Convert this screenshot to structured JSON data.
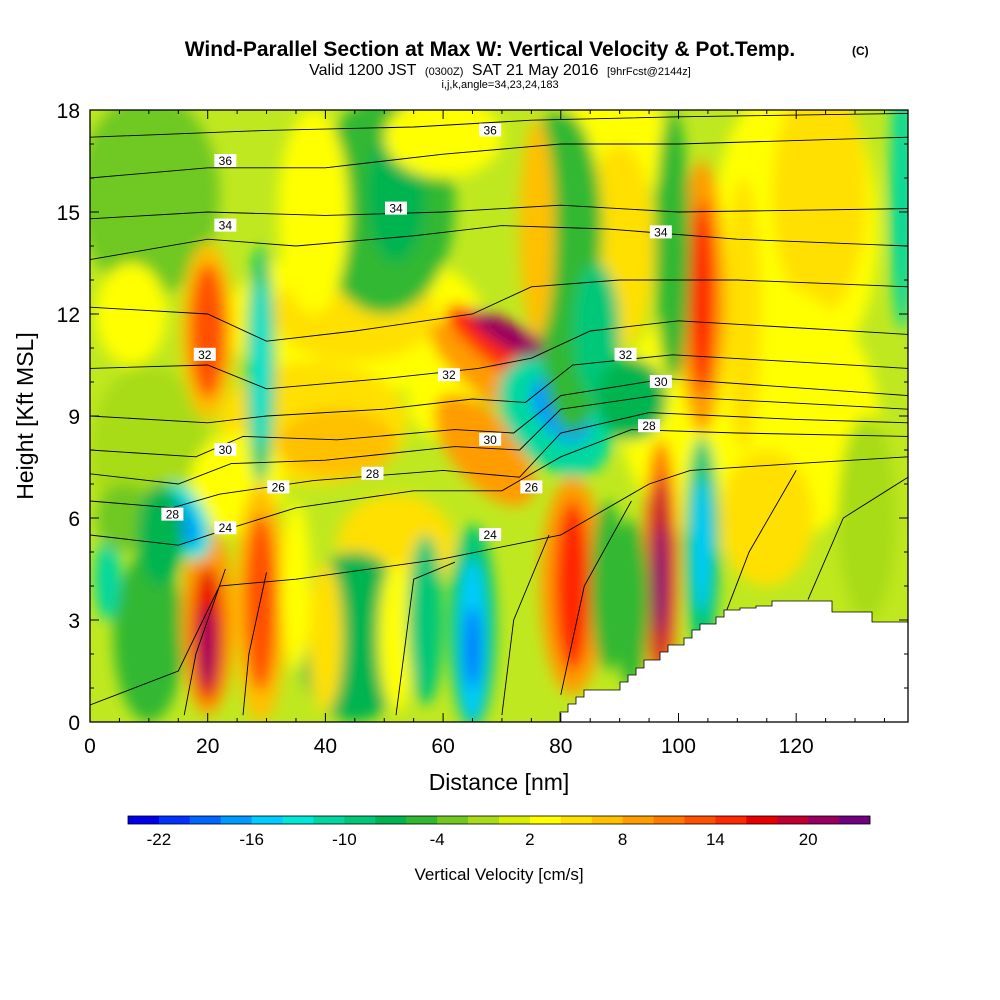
{
  "chart_data": {
    "type": "heatmap",
    "title": "Wind-Parallel Section at Max W: Vertical Velocity & Pot.Temp.",
    "title_mark": "(C)",
    "subtitle_parts": [
      "Valid 1200 JST",
      "(0300Z)",
      "SAT 21 May 2016",
      "[9hrFcst@2144z]"
    ],
    "subtitle_line2": "i,j,k,angle=34,23,24,183",
    "xlabel": "Distance [nm]",
    "ylabel": "Height [Kft MSL]",
    "xlim": [
      0,
      139
    ],
    "ylim": [
      0,
      18
    ],
    "x_ticks": [
      "0",
      "20",
      "40",
      "60",
      "80",
      "100",
      "120"
    ],
    "x_tick_values": [
      0,
      20,
      40,
      60,
      80,
      100,
      120
    ],
    "y_ticks": [
      "0",
      "3",
      "6",
      "9",
      "12",
      "15",
      "18"
    ],
    "y_tick_values": [
      0,
      3,
      6,
      9,
      12,
      15,
      18
    ],
    "grid": false,
    "colorbar": {
      "title": "Vertical Velocity [cm/s]",
      "labels": [
        "-22",
        "-16",
        "-10",
        "-4",
        "2",
        "8",
        "14",
        "20"
      ],
      "min": -24,
      "max": 24,
      "step": 2,
      "colors": [
        "#0000e8",
        "#0033ff",
        "#0066ff",
        "#0099ff",
        "#00ccff",
        "#00e8d8",
        "#00d8a0",
        "#00c878",
        "#00b450",
        "#30b830",
        "#70c820",
        "#a8dc18",
        "#d8f000",
        "#ffff00",
        "#ffe000",
        "#ffc000",
        "#ff9c00",
        "#ff7800",
        "#ff5000",
        "#ff2800",
        "#e80000",
        "#c00030",
        "#980060",
        "#700080"
      ]
    },
    "contour_labels": [
      {
        "text": "36",
        "x": 23,
        "y": 16.5
      },
      {
        "text": "36",
        "x": 68,
        "y": 17.4
      },
      {
        "text": "34",
        "x": 23,
        "y": 14.6
      },
      {
        "text": "34",
        "x": 52,
        "y": 15.1
      },
      {
        "text": "34",
        "x": 97,
        "y": 14.4
      },
      {
        "text": "32",
        "x": 19.5,
        "y": 10.8
      },
      {
        "text": "32",
        "x": 61,
        "y": 10.2
      },
      {
        "text": "32",
        "x": 91,
        "y": 10.8
      },
      {
        "text": "30",
        "x": 23,
        "y": 8.0
      },
      {
        "text": "30",
        "x": 68,
        "y": 8.3
      },
      {
        "text": "30",
        "x": 97,
        "y": 10.0
      },
      {
        "text": "28",
        "x": 14,
        "y": 6.1
      },
      {
        "text": "28",
        "x": 48,
        "y": 7.3
      },
      {
        "text": "28",
        "x": 95,
        "y": 8.7
      },
      {
        "text": "26",
        "x": 32,
        "y": 6.9
      },
      {
        "text": "26",
        "x": 75,
        "y": 6.9
      },
      {
        "text": "24",
        "x": 23,
        "y": 5.7
      },
      {
        "text": "24",
        "x": 68,
        "y": 5.5
      }
    ]
  }
}
